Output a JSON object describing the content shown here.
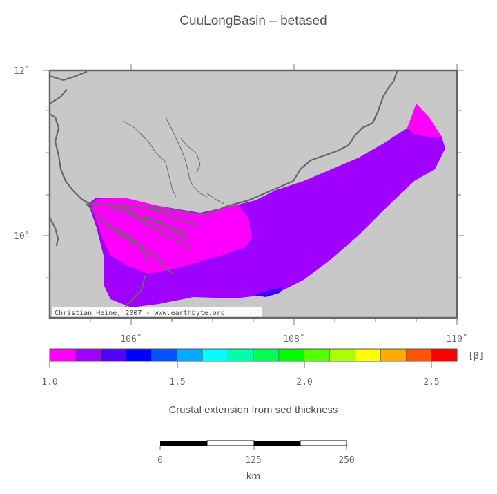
{
  "title": "CuuLongBasin – betased",
  "map": {
    "lat_ticks": [
      "12˚",
      "10˚"
    ],
    "lon_ticks": [
      "106˚",
      "108˚",
      "110˚"
    ],
    "credit": "Christian Heine, 2007 - www.earthbyte.org",
    "colors": {
      "land": "#c8c8c8",
      "beta_low": "#ff00ff",
      "beta_mid": "#a000ff",
      "beta_high": "#3c00ff",
      "coast": "#666666"
    }
  },
  "colorbar": {
    "unit": "[β]",
    "tick_labels": [
      "1.0",
      "1.5",
      "2.0",
      "2.5"
    ],
    "colors": [
      "#ff00ff",
      "#a000ff",
      "#5500ff",
      "#0000ff",
      "#0055ff",
      "#00aaff",
      "#00ffff",
      "#00ffaa",
      "#00ff55",
      "#00ff00",
      "#55ff00",
      "#aaff00",
      "#ffff00",
      "#ffaa00",
      "#ff5500",
      "#ff0000"
    ],
    "caption": "Crustal extension from sed thickness"
  },
  "scalebar": {
    "tick_labels": [
      "0",
      "125",
      "250"
    ],
    "unit": "km"
  }
}
